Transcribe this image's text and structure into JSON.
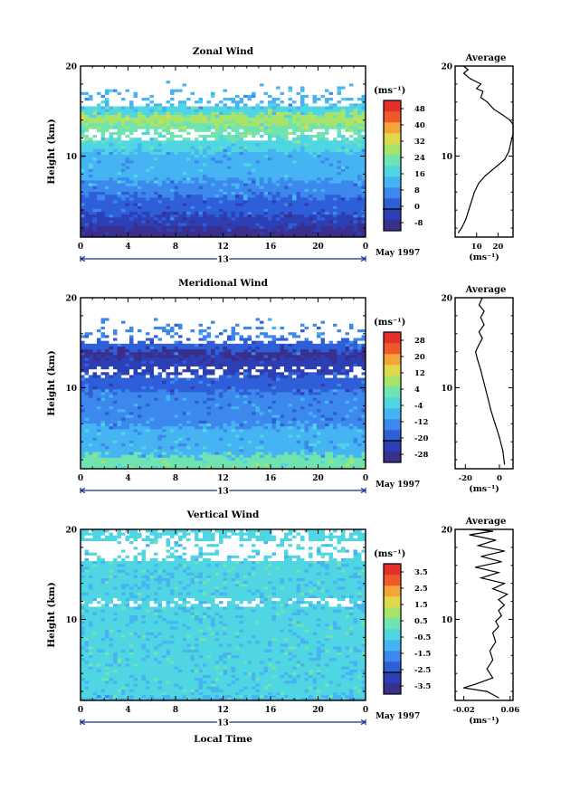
{
  "chart_data": [
    {
      "type": "heatmap",
      "title": "Zonal Wind",
      "ylabel": "Height (km)",
      "xlabel": "",
      "x_ticks": [
        "0",
        "4",
        "8",
        "12",
        "16",
        "20",
        "0"
      ],
      "y_ticks": [
        "10",
        "20"
      ],
      "xlim": [
        0,
        24
      ],
      "ylim": [
        1,
        20
      ],
      "date_axis_label": "13",
      "date_label": "May 1997",
      "colorbar": {
        "unit": "(ms⁻¹)",
        "levels": [
          -8,
          0,
          8,
          16,
          24,
          32,
          40,
          48
        ],
        "tick_labels": [
          "-8",
          "0",
          "8",
          "16",
          "24",
          "32",
          "40",
          "48"
        ],
        "colors": [
          "#3a2f8c",
          "#2c3fb5",
          "#2f5fd8",
          "#3c88ec",
          "#46b3f2",
          "#4fd6e2",
          "#6fe3b0",
          "#a8e36b",
          "#e2d94a",
          "#f3a43a",
          "#ee5a2b",
          "#e5302a"
        ]
      },
      "profile": {
        "title": "Average",
        "x_ticks": [
          "10",
          "20"
        ],
        "xlim": [
          0,
          27
        ],
        "xlabel": "(ms⁻¹)",
        "y_ticks": [
          "10",
          "20"
        ],
        "ylim": [
          1,
          20
        ],
        "points": [
          [
            1.5,
            1.5
          ],
          [
            3,
            2.0
          ],
          [
            5,
            3.0
          ],
          [
            7,
            4.5
          ],
          [
            9,
            6.0
          ],
          [
            11,
            7.0
          ],
          [
            14,
            7.8
          ],
          [
            17,
            8.4
          ],
          [
            20,
            9.0
          ],
          [
            23,
            9.6
          ],
          [
            25,
            10.5
          ],
          [
            26,
            11.5
          ],
          [
            27,
            12.5
          ],
          [
            27,
            13.5
          ],
          [
            25.5,
            14.0
          ],
          [
            22,
            14.6
          ],
          [
            18,
            15.2
          ],
          [
            15,
            16.0
          ],
          [
            12,
            16.5
          ],
          [
            13,
            17.2
          ],
          [
            10,
            17.5
          ],
          [
            12,
            18.0
          ],
          [
            7,
            18.6
          ],
          [
            4,
            19.2
          ],
          [
            6,
            19.6
          ],
          [
            4,
            20.0
          ]
        ]
      }
    },
    {
      "type": "heatmap",
      "title": "Meridional Wind",
      "ylabel": "Height (km)",
      "xlabel": "",
      "x_ticks": [
        "0",
        "4",
        "8",
        "12",
        "16",
        "20",
        "0"
      ],
      "y_ticks": [
        "10",
        "20"
      ],
      "xlim": [
        0,
        24
      ],
      "ylim": [
        1,
        20
      ],
      "date_axis_label": "13",
      "date_label": "May 1997",
      "colorbar": {
        "unit": "(ms⁻¹)",
        "levels": [
          -28,
          -20,
          -12,
          -4,
          4,
          12,
          20,
          28
        ],
        "tick_labels": [
          "-28",
          "-20",
          "-12",
          "-4",
          "4",
          "12",
          "20",
          "28"
        ],
        "colors": [
          "#3a2f8c",
          "#2c3fb5",
          "#2f5fd8",
          "#3c88ec",
          "#46b3f2",
          "#4fd6e2",
          "#6fe3b0",
          "#a8e36b",
          "#e2d94a",
          "#f3a43a",
          "#ee5a2b",
          "#e5302a"
        ]
      },
      "profile": {
        "title": "Average",
        "x_ticks": [
          "-20",
          "0"
        ],
        "xlim": [
          -26,
          8
        ],
        "xlabel": "(ms⁻¹)",
        "y_ticks": [
          "10",
          "20"
        ],
        "ylim": [
          1,
          20
        ],
        "points": [
          [
            3,
            1.5
          ],
          [
            2,
            3.0
          ],
          [
            0,
            4.5
          ],
          [
            -2.5,
            6.0
          ],
          [
            -5,
            7.5
          ],
          [
            -7,
            9.0
          ],
          [
            -9,
            10.5
          ],
          [
            -11,
            12.0
          ],
          [
            -13,
            13.2
          ],
          [
            -14,
            14.0
          ],
          [
            -12,
            14.8
          ],
          [
            -10,
            15.5
          ],
          [
            -12,
            16.2
          ],
          [
            -9,
            17.0
          ],
          [
            -11,
            17.8
          ],
          [
            -9,
            18.5
          ],
          [
            -12,
            19.2
          ],
          [
            -10,
            20.0
          ]
        ]
      }
    },
    {
      "type": "heatmap",
      "title": "Vertical Wind",
      "ylabel": "Height (km)",
      "xlabel": "Local Time",
      "x_ticks": [
        "0",
        "4",
        "8",
        "12",
        "16",
        "20",
        "0"
      ],
      "y_ticks": [
        "10",
        "20"
      ],
      "xlim": [
        0,
        24
      ],
      "ylim": [
        1,
        20
      ],
      "date_axis_label": "13",
      "date_label": "May 1997",
      "colorbar": {
        "unit": "(ms⁻¹)",
        "levels": [
          -3.5,
          -2.5,
          -1.5,
          -0.5,
          0.5,
          1.5,
          2.5,
          3.5
        ],
        "tick_labels": [
          "-3.5",
          "-2.5",
          "-1.5",
          "-0.5",
          "0.5",
          "1.5",
          "2.5",
          "3.5"
        ],
        "colors": [
          "#3a2f8c",
          "#2c3fb5",
          "#2f5fd8",
          "#3c88ec",
          "#46b3f2",
          "#4fd6e2",
          "#6fe3b0",
          "#a8e36b",
          "#e2d94a",
          "#f3a43a",
          "#ee5a2b",
          "#e5302a"
        ]
      },
      "profile": {
        "title": "Average",
        "x_ticks": [
          "-0.02",
          "0.06"
        ],
        "xlim": [
          -0.035,
          0.065
        ],
        "xlabel": "(ms⁻¹)",
        "y_ticks": [
          "10",
          "20"
        ],
        "ylim": [
          1,
          20
        ],
        "points": [
          [
            0.04,
            1.3
          ],
          [
            0.02,
            2.0
          ],
          [
            -0.02,
            2.4
          ],
          [
            0.0,
            2.8
          ],
          [
            0.03,
            3.5
          ],
          [
            0.02,
            4.5
          ],
          [
            0.03,
            5.5
          ],
          [
            0.025,
            6.5
          ],
          [
            0.035,
            7.5
          ],
          [
            0.03,
            8.5
          ],
          [
            0.04,
            9.2
          ],
          [
            0.035,
            9.8
          ],
          [
            0.045,
            10.4
          ],
          [
            0.04,
            11.0
          ],
          [
            0.05,
            11.6
          ],
          [
            0.04,
            12.2
          ],
          [
            0.055,
            12.8
          ],
          [
            0.03,
            13.4
          ],
          [
            0.05,
            14.0
          ],
          [
            0.01,
            14.6
          ],
          [
            0.04,
            15.2
          ],
          [
            0.0,
            15.8
          ],
          [
            0.045,
            16.4
          ],
          [
            0.01,
            17.0
          ],
          [
            0.05,
            17.6
          ],
          [
            0.005,
            18.2
          ],
          [
            0.035,
            18.8
          ],
          [
            -0.01,
            19.4
          ],
          [
            0.03,
            19.8
          ],
          [
            0.0,
            20.0
          ]
        ]
      }
    }
  ]
}
